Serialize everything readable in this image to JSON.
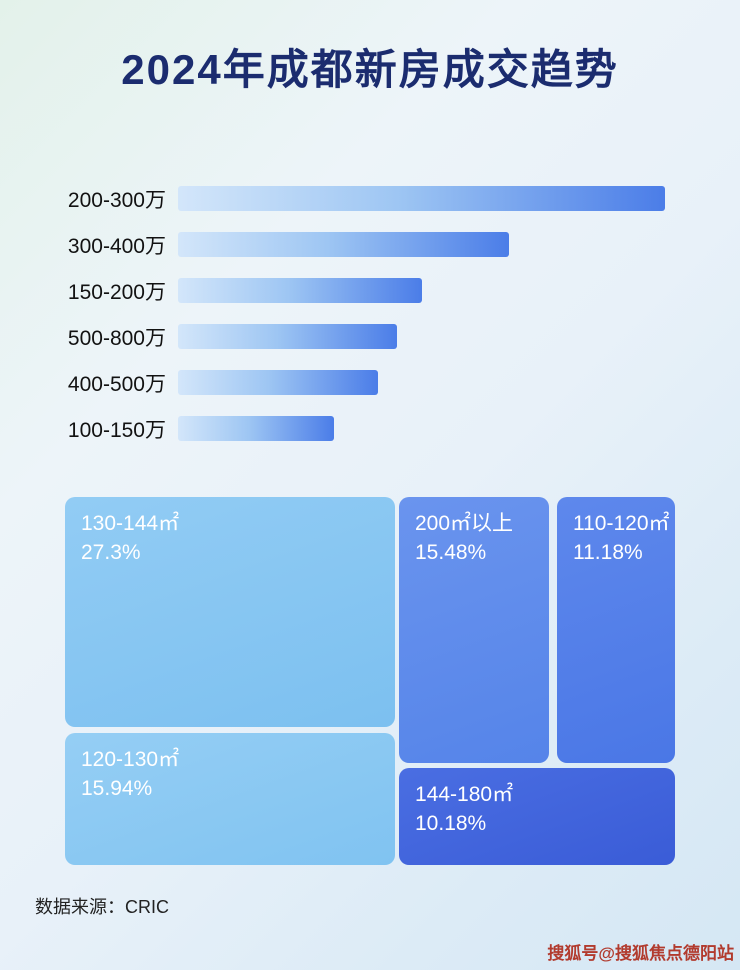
{
  "title": "2024年成都新房成交趋势",
  "chart_data": [
    {
      "type": "bar",
      "orientation": "horizontal",
      "title": "",
      "xlabel": "",
      "ylabel": "",
      "grid": false,
      "legend": false,
      "value_unit": "percent-of-longest-bar (no numeric axis shown; lengths estimated from pixels)",
      "categories": [
        "200-300万",
        "300-400万",
        "150-200万",
        "500-800万",
        "400-500万",
        "100-150万"
      ],
      "values": [
        100,
        68,
        50,
        45,
        41,
        32
      ],
      "bar_gradient": [
        "#d3e6fa",
        "#4b7de8"
      ]
    },
    {
      "type": "treemap",
      "title": "",
      "items": [
        {
          "label": "130-144㎡",
          "share_pct": 27.3,
          "value_label": "27.3%",
          "color": "#87c7f2"
        },
        {
          "label": "200㎡以上",
          "share_pct": 15.48,
          "value_label": "15.48%",
          "color": "#5f8cea"
        },
        {
          "label": "110-120㎡",
          "share_pct": 11.18,
          "value_label": "11.18%",
          "color": "#527ee8"
        },
        {
          "label": "120-130㎡",
          "share_pct": 15.94,
          "value_label": "15.94%",
          "color": "#8bc9f3"
        },
        {
          "label": "144-180㎡",
          "share_pct": 10.18,
          "value_label": "10.18%",
          "color": "#4164dd"
        }
      ]
    }
  ],
  "footer": {
    "source": "数据来源：CRIC"
  },
  "watermark": {
    "text": "搜狐号@搜狐焦点德阳站",
    "color": "#b23b2e"
  },
  "colors": {
    "title": "#1b2c6f",
    "background_start": "#e3f2ea",
    "background_end": "#d5e7f4"
  }
}
